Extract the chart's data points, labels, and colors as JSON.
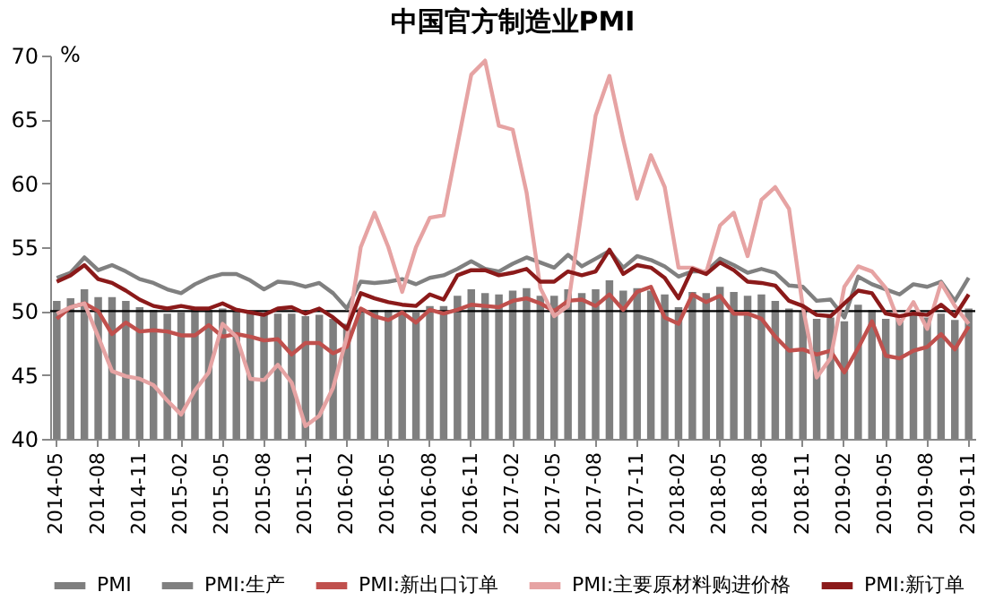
{
  "chart_data": {
    "type": "bar",
    "title": "中国官方制造业PMI",
    "ylabel": "%",
    "categories": [
      "2014-05",
      null,
      null,
      "2014-08",
      null,
      null,
      "2014-11",
      null,
      null,
      "2015-02",
      null,
      null,
      "2015-05",
      null,
      null,
      "2015-08",
      null,
      null,
      "2015-11",
      null,
      null,
      "2016-02",
      null,
      null,
      "2016-05",
      null,
      null,
      "2016-08",
      null,
      null,
      "2016-11",
      null,
      null,
      "2017-02",
      null,
      null,
      "2017-05",
      null,
      null,
      "2017-08",
      null,
      null,
      "2017-11",
      null,
      null,
      "2018-02",
      null,
      null,
      "2018-05",
      null,
      null,
      "2018-08",
      null,
      null,
      "2018-11",
      null,
      null,
      "2019-02",
      null,
      null,
      "2019-05",
      null,
      null,
      "2019-08",
      null,
      null,
      "2019-11"
    ],
    "series": [
      {
        "name": "PMI",
        "color": "#7f7f7f",
        "values": [
          50.8,
          51.0,
          51.7,
          51.1,
          51.1,
          50.8,
          50.3,
          50.1,
          49.8,
          49.9,
          50.1,
          50.1,
          50.2,
          50.2,
          50.0,
          49.7,
          49.8,
          49.8,
          49.6,
          49.7,
          49.4,
          49.0,
          50.2,
          50.1,
          50.1,
          50.0,
          49.9,
          50.4,
          50.4,
          51.2,
          51.7,
          51.4,
          51.3,
          51.6,
          51.8,
          51.2,
          51.2,
          51.7,
          51.4,
          51.7,
          52.4,
          51.6,
          51.8,
          51.6,
          51.3,
          50.3,
          51.5,
          51.4,
          51.9,
          51.5,
          51.2,
          51.3,
          50.8,
          50.2,
          50.0,
          49.4,
          49.5,
          49.2,
          50.5,
          50.1,
          49.4,
          49.4,
          49.7,
          49.5,
          49.8,
          49.3,
          50.2
        ]
      },
      {
        "name": "PMI:生产",
        "type": "line",
        "color": "#808080",
        "values": [
          52.6,
          53.0,
          54.2,
          53.2,
          53.6,
          53.1,
          52.5,
          52.2,
          51.7,
          51.4,
          52.1,
          52.6,
          52.9,
          52.9,
          52.4,
          51.7,
          52.3,
          52.2,
          51.9,
          52.2,
          51.4,
          50.2,
          52.3,
          52.2,
          52.3,
          52.5,
          52.1,
          52.6,
          52.8,
          53.3,
          53.9,
          53.3,
          53.1,
          53.7,
          54.2,
          53.8,
          53.4,
          54.4,
          53.5,
          54.1,
          54.7,
          53.4,
          54.3,
          54.0,
          53.5,
          52.7,
          53.1,
          53.1,
          54.1,
          53.6,
          53.0,
          53.3,
          53.0,
          52.0,
          51.9,
          50.8,
          50.9,
          49.5,
          52.7,
          52.1,
          51.7,
          51.3,
          52.1,
          51.9,
          52.3,
          50.8,
          52.6
        ]
      },
      {
        "name": "PMI:新出口订单",
        "type": "line",
        "color": "#c0504d",
        "values": [
          49.4,
          50.3,
          50.6,
          50.0,
          48.2,
          49.1,
          48.4,
          48.5,
          48.4,
          48.1,
          48.1,
          48.9,
          48.0,
          48.2,
          48.0,
          47.7,
          47.8,
          46.6,
          47.5,
          47.5,
          46.7,
          47.2,
          50.2,
          49.6,
          49.3,
          49.9,
          49.1,
          50.1,
          49.8,
          50.1,
          50.5,
          50.4,
          50.3,
          50.8,
          51.0,
          50.6,
          50.0,
          50.8,
          50.9,
          50.4,
          51.3,
          50.1,
          51.5,
          51.9,
          49.5,
          49.0,
          51.3,
          50.7,
          51.2,
          49.8,
          49.8,
          49.4,
          48.0,
          46.9,
          47.0,
          46.6,
          46.9,
          45.2,
          47.1,
          49.2,
          46.5,
          46.3,
          46.9,
          47.2,
          48.2,
          47.0,
          48.8
        ]
      },
      {
        "name": "PMI:主要原材料购进价格",
        "type": "line",
        "color": "#e6a3a3",
        "values": [
          49.8,
          50.3,
          50.6,
          48.0,
          45.3,
          44.9,
          44.7,
          44.2,
          43.0,
          41.9,
          43.8,
          45.2,
          49.0,
          48.0,
          44.7,
          44.6,
          45.8,
          44.4,
          41.0,
          41.8,
          44.0,
          48.0,
          55.0,
          57.7,
          55.0,
          51.5,
          55.0,
          57.3,
          57.5,
          63.0,
          68.5,
          69.6,
          64.5,
          64.2,
          59.3,
          51.8,
          49.6,
          50.4,
          57.9,
          65.3,
          68.4,
          63.4,
          58.8,
          62.2,
          59.7,
          53.4,
          53.4,
          53.0,
          56.7,
          57.7,
          54.3,
          58.7,
          59.7,
          58.0,
          50.3,
          44.8,
          46.3,
          51.9,
          53.5,
          53.1,
          51.8,
          49.0,
          50.7,
          48.6,
          52.2,
          50.4,
          49.0
        ]
      },
      {
        "name": "PMI:新订单",
        "type": "line",
        "color": "#8b1a1a",
        "values": [
          52.3,
          52.8,
          53.6,
          52.5,
          52.2,
          51.6,
          50.9,
          50.4,
          50.2,
          50.4,
          50.2,
          50.2,
          50.6,
          50.1,
          49.9,
          49.7,
          50.2,
          50.3,
          49.8,
          50.2,
          49.5,
          48.6,
          51.4,
          51.0,
          50.7,
          50.5,
          50.4,
          51.3,
          50.9,
          52.8,
          53.2,
          53.2,
          52.8,
          53.0,
          53.3,
          52.3,
          52.3,
          53.1,
          52.8,
          53.1,
          54.8,
          52.9,
          53.6,
          53.4,
          52.6,
          51.0,
          53.3,
          52.9,
          53.8,
          53.2,
          52.3,
          52.2,
          52.0,
          50.8,
          50.4,
          49.7,
          49.6,
          50.6,
          51.6,
          51.4,
          49.8,
          49.6,
          49.8,
          49.7,
          50.5,
          49.6,
          51.3
        ]
      }
    ],
    "ylim": [
      40,
      70
    ],
    "yticks": [
      40,
      45,
      50,
      55,
      60,
      65,
      70
    ],
    "ref_lines": [
      {
        "axis": "y",
        "value": 50,
        "color": "#000000"
      }
    ],
    "grid": false,
    "legend": "bottom"
  }
}
